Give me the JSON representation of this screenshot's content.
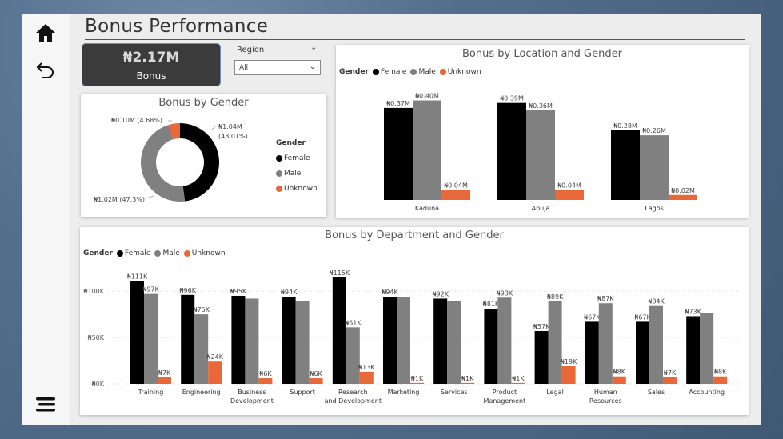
{
  "title": "Bonus Performance",
  "nav": {
    "home_icon": "home-icon",
    "back_icon": "back-arrow-icon",
    "menu_icon": "menu-icon"
  },
  "kpi": {
    "value": "₦2.17M",
    "label": "Bonus"
  },
  "slicer": {
    "label": "Region",
    "value": "All"
  },
  "colors": {
    "Female": "#000000",
    "Male": "#808080",
    "Unknown": "#e8683a"
  },
  "legend": {
    "title": "Gender",
    "items": [
      "Female",
      "Male",
      "Unknown"
    ]
  },
  "donut": {
    "title": "Bonus by Gender",
    "labels": [
      {
        "name": "Female",
        "value": "₦1.04M",
        "pct": "(48.01%)"
      },
      {
        "name": "Male",
        "value": "₦1.02M (47.3%)"
      },
      {
        "name": "Unknown",
        "value": "₦0.10M (4.68%)"
      }
    ]
  },
  "location_chart": {
    "title": "Bonus by Location and Gender"
  },
  "department_chart": {
    "title": "Bonus by Department and Gender"
  },
  "chart_data": [
    {
      "type": "pie",
      "title": "Bonus by Gender",
      "categories": [
        "Female",
        "Male",
        "Unknown"
      ],
      "values": [
        48.01,
        47.3,
        4.68
      ],
      "amounts_millions": [
        1.04,
        1.02,
        0.1
      ]
    },
    {
      "type": "bar",
      "title": "Bonus by Location and Gender",
      "categories": [
        "Kaduna",
        "Abuja",
        "Lagos"
      ],
      "series": [
        {
          "name": "Female",
          "values": [
            0.37,
            0.39,
            0.28
          ],
          "labels": [
            "₦0.37M",
            "₦0.39M",
            "₦0.28M"
          ]
        },
        {
          "name": "Male",
          "values": [
            0.4,
            0.36,
            0.26
          ],
          "labels": [
            "₦0.40M",
            "₦0.36M",
            "₦0.26M"
          ]
        },
        {
          "name": "Unknown",
          "values": [
            0.04,
            0.04,
            0.02
          ],
          "labels": [
            "₦0.04M",
            "₦0.04M",
            "₦0.02M"
          ]
        }
      ],
      "ylim": [
        0,
        0.45
      ],
      "legend": "top-left"
    },
    {
      "type": "bar",
      "title": "Bonus by Department and Gender",
      "categories": [
        "Training",
        "Engineering",
        "Business Development",
        "Support",
        "Research and Development",
        "Marketing",
        "Services",
        "Product Management",
        "Legal",
        "Human Resources",
        "Sales",
        "Accounting"
      ],
      "series": [
        {
          "name": "Female",
          "values": [
            111,
            96,
            95,
            94,
            115,
            94,
            92,
            81,
            57,
            67,
            67,
            73
          ],
          "labels": [
            "₦111K",
            "₦96K",
            "₦95K",
            "₦94K",
            "₦115K",
            "₦94K",
            "₦92K",
            "₦81K",
            "₦57K",
            "₦67K",
            "₦67K",
            "₦73K"
          ]
        },
        {
          "name": "Male",
          "values": [
            97,
            75,
            92,
            89,
            61,
            94,
            89,
            93,
            89,
            87,
            84,
            76
          ],
          "labels": [
            "₦97K",
            "₦75K",
            "",
            "",
            "₦61K",
            "",
            "",
            "₦93K",
            "₦89K",
            "₦87K",
            "₦84K",
            ""
          ]
        },
        {
          "name": "Unknown",
          "values": [
            7,
            24,
            6,
            6,
            13,
            1,
            1,
            1,
            19,
            8,
            7,
            8
          ],
          "labels": [
            "₦7K",
            "₦24K",
            "₦6K",
            "₦6K",
            "₦13K",
            "₦1K",
            "₦1K",
            "₦1K",
            "₦19K",
            "₦8K",
            "₦7K",
            "₦8K"
          ]
        }
      ],
      "yticks": [
        0,
        50,
        100
      ],
      "ytick_labels": [
        "₦0K",
        "₦50K",
        "₦100K"
      ],
      "ylim": [
        0,
        120
      ],
      "legend": "top-left"
    }
  ]
}
